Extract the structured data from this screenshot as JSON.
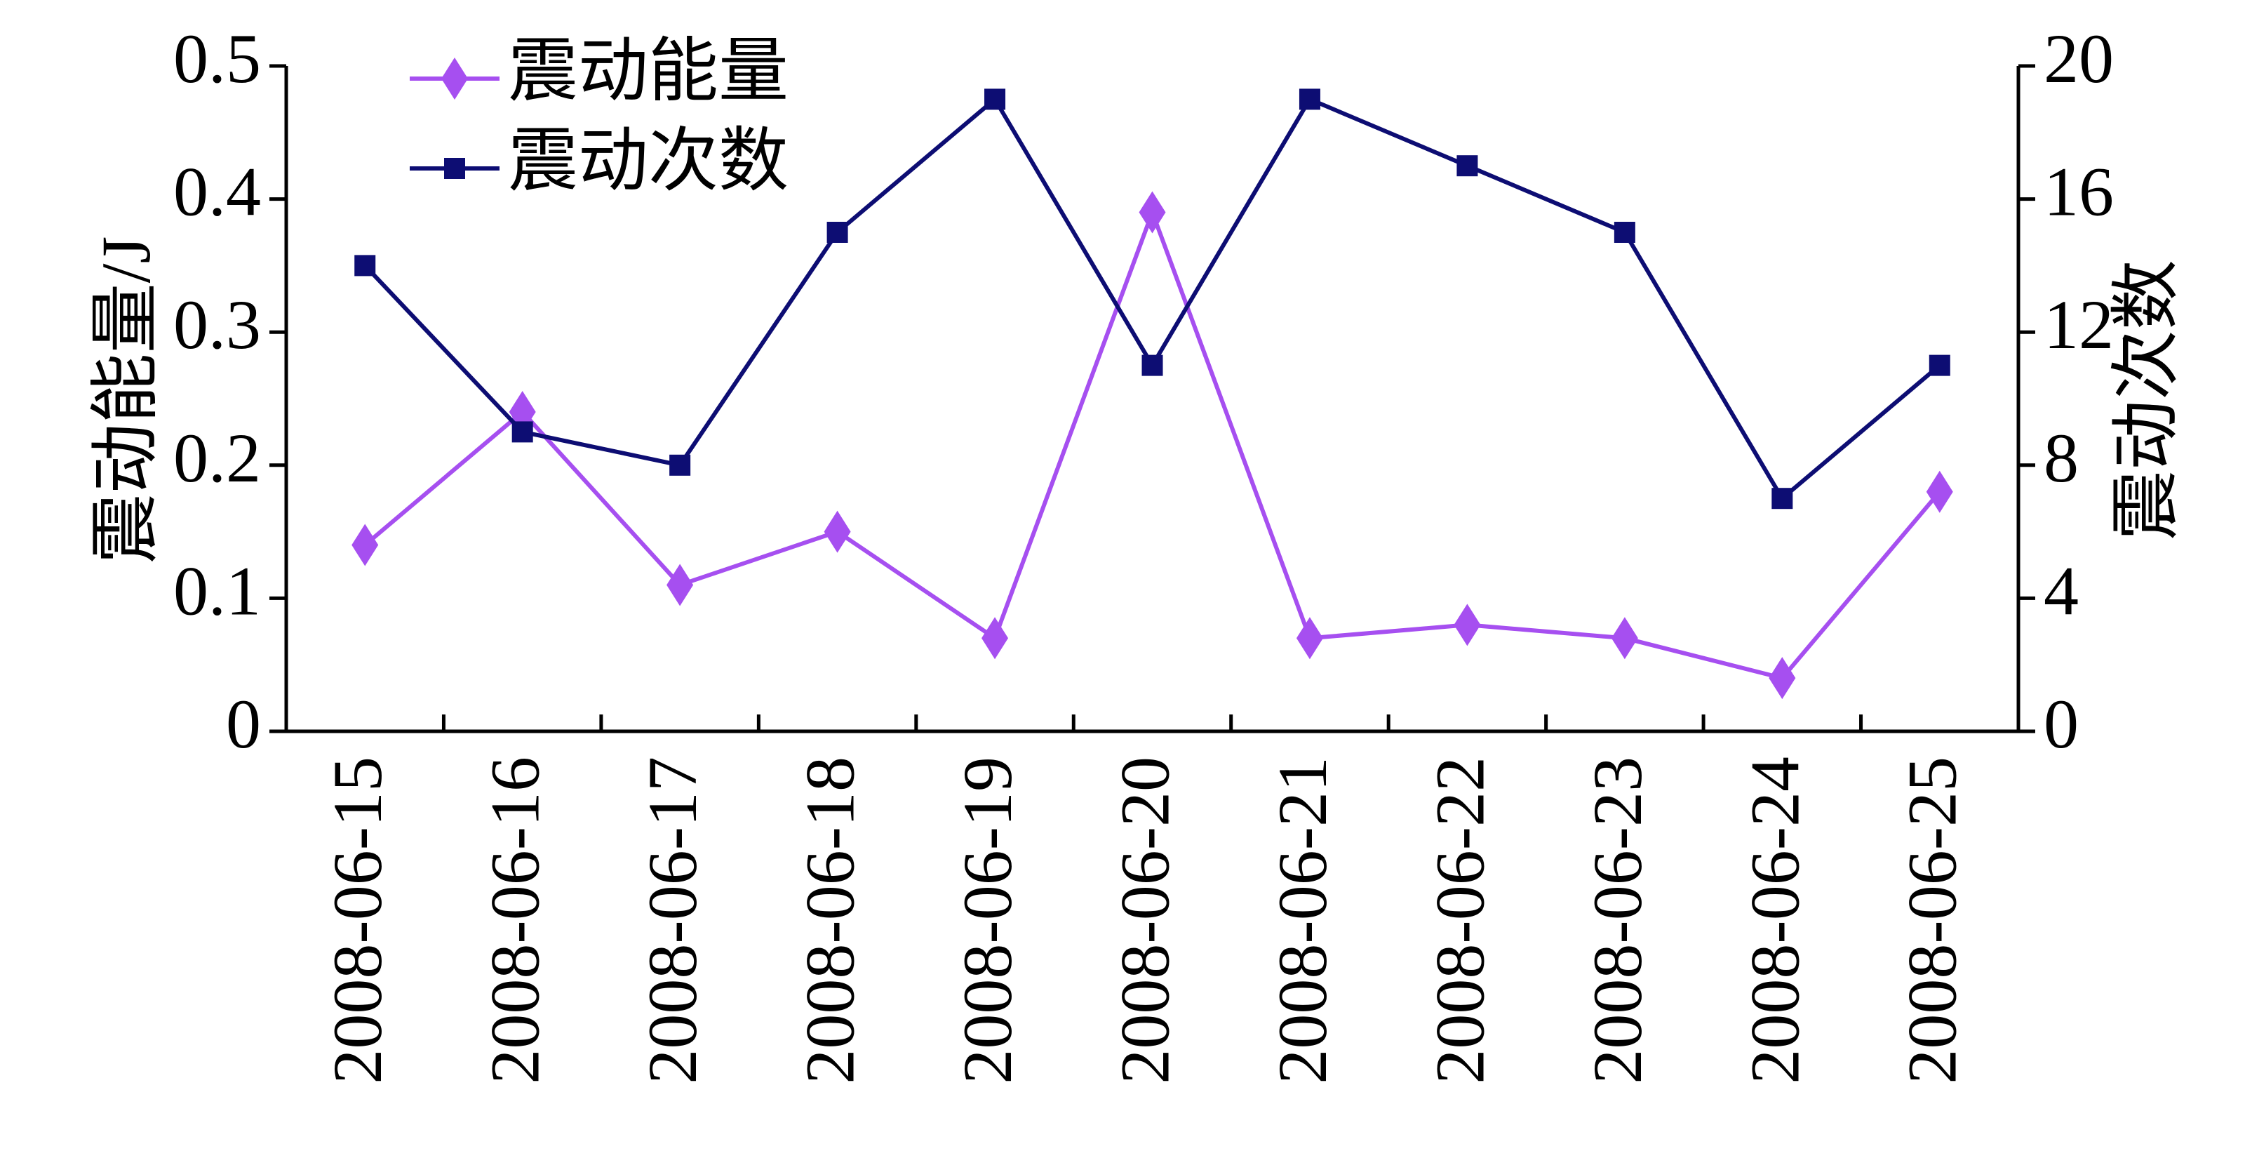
{
  "chart_data": {
    "type": "line",
    "categories": [
      "2008-06-15",
      "2008-06-16",
      "2008-06-17",
      "2008-06-18",
      "2008-06-19",
      "2008-06-20",
      "2008-06-21",
      "2008-06-22",
      "2008-06-23",
      "2008-06-24",
      "2008-06-25"
    ],
    "series": [
      {
        "name": "震动能量",
        "color": "#a64ff0",
        "marker": "diamond",
        "values": [
          0.14,
          0.24,
          0.11,
          0.15,
          0.07,
          0.39,
          0.07,
          0.08,
          0.07,
          0.04,
          0.18
        ]
      },
      {
        "name": "震动次数",
        "color": "#0d0d73",
        "marker": "square",
        "axis": "y2",
        "values": [
          14,
          9,
          8,
          15,
          19,
          11,
          19,
          17,
          15,
          7,
          11
        ]
      }
    ],
    "y_label": "震动能量/J",
    "y2_label": "震动次数",
    "ylim": [
      0,
      0.5
    ],
    "yticks": [
      0,
      0.1,
      0.2,
      0.3,
      0.4,
      0.5
    ],
    "y2lim": [
      0,
      20
    ],
    "y2ticks": [
      0,
      4,
      8,
      12,
      16,
      20
    ],
    "legend": "top-left",
    "grid": false
  }
}
